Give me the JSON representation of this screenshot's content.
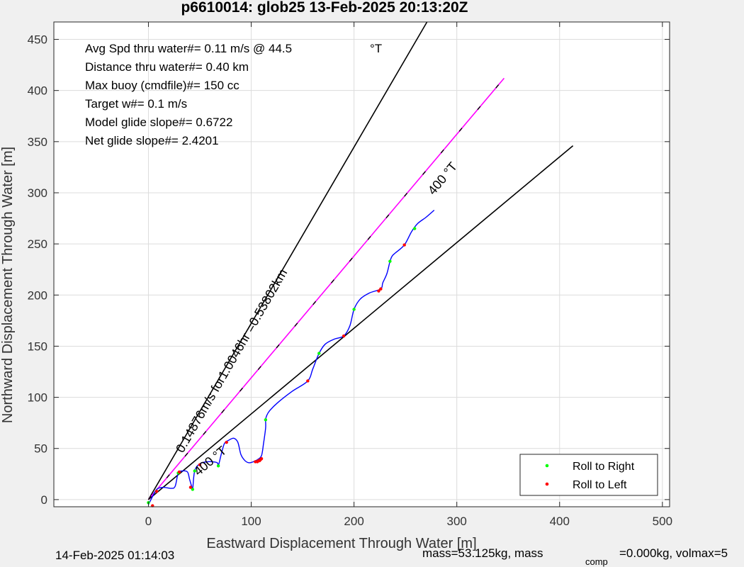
{
  "chart_data": {
    "type": "line",
    "title": "p6610014: glob25 13-Feb-2025 20:13:20Z",
    "xlabel": "Eastward Displacement Through Water [m]",
    "ylabel": "Northward Displacement Through Water [m]",
    "xlim": [
      -92,
      507
    ],
    "ylim": [
      -7,
      467
    ],
    "xticks": [
      0,
      100,
      200,
      300,
      400,
      500
    ],
    "yticks": [
      0,
      50,
      100,
      150,
      200,
      250,
      300,
      350,
      400,
      450
    ],
    "xtick_labels": [
      "0",
      "100",
      "200",
      "300",
      "400",
      "500"
    ],
    "ytick_labels": [
      "0",
      "50",
      "100",
      "150",
      "200",
      "250",
      "300",
      "350",
      "400",
      "450"
    ],
    "grid": true,
    "annotations": [
      "Avg Spd thru water#=  0.11 m/s @  44.5",
      "°T",
      "Distance thru water#=  0.40 km",
      "Max buoy (cmdfile)#= 150 cc",
      "Target w#= 0.1 m/s",
      "Model glide slope#= 0.6722",
      "Net glide slope#= 2.4201"
    ],
    "rotated_labels": {
      "heading_upper": "400 °T",
      "heading_lower": "400 °T",
      "speed": "0.14876m/s for1.0046hr =0.53802km"
    },
    "reference_lines": [
      {
        "name": "bound-left",
        "color": "#000000",
        "from": [
          0,
          0
        ],
        "to": [
          271,
          467
        ]
      },
      {
        "name": "bound-right",
        "color": "#000000",
        "from": [
          0,
          0
        ],
        "to": [
          413,
          346
        ]
      },
      {
        "name": "center-heading",
        "color": "#ff00ff",
        "dashed_color": "#000000",
        "from": [
          0,
          0
        ],
        "to": [
          346,
          412
        ]
      }
    ],
    "track": {
      "color": "#0000ff",
      "x": [
        0,
        4,
        8,
        14,
        22,
        26,
        29,
        33,
        38,
        40,
        42,
        43,
        45,
        50,
        57,
        62,
        67,
        68,
        71,
        74,
        78,
        83,
        87,
        90,
        94,
        98,
        102,
        106,
        110,
        112,
        114,
        114,
        115,
        118,
        126,
        140,
        155,
        160,
        166,
        172,
        181,
        190,
        196,
        200,
        206,
        215,
        226,
        228,
        232,
        235,
        237,
        240,
        249,
        256,
        262,
        270,
        278
      ],
      "y": [
        -5,
        3,
        10,
        12,
        11,
        13,
        26,
        28,
        27,
        20,
        13,
        10,
        28,
        35,
        37,
        37,
        36,
        33,
        45,
        55,
        58,
        60,
        56,
        44,
        38,
        36,
        37,
        39,
        43,
        55,
        70,
        78,
        82,
        87,
        95,
        106,
        116,
        128,
        143,
        152,
        157,
        160,
        170,
        186,
        196,
        202,
        206,
        212,
        221,
        233,
        238,
        241,
        249,
        262,
        270,
        276,
        283
      ]
    },
    "series": [
      {
        "name": "Roll to Right",
        "color": "#00ff00",
        "x": [
          0,
          29,
          43,
          45,
          68,
          114,
          166,
          200,
          235,
          259
        ],
        "y": [
          -3,
          26,
          10,
          28,
          33,
          78,
          143,
          186,
          233,
          265
        ]
      },
      {
        "name": "Roll to Left",
        "color": "#ff0000",
        "x": [
          4,
          8,
          30,
          41,
          50,
          76,
          104,
          106,
          107,
          108,
          109,
          110,
          155,
          190,
          224,
          226,
          249
        ],
        "y": [
          -6,
          8,
          27,
          12,
          34,
          56,
          37,
          37,
          38,
          38,
          39,
          40,
          116,
          160,
          204,
          206,
          249
        ]
      }
    ],
    "legend_position": "bottom-right",
    "footer_left": "14-Feb-2025 01:14:03",
    "footer_right": {
      "prefix": "mass=53.125kg, mass",
      "subscript": "comp",
      "suffix": "=0.000kg, volmax=5"
    }
  }
}
